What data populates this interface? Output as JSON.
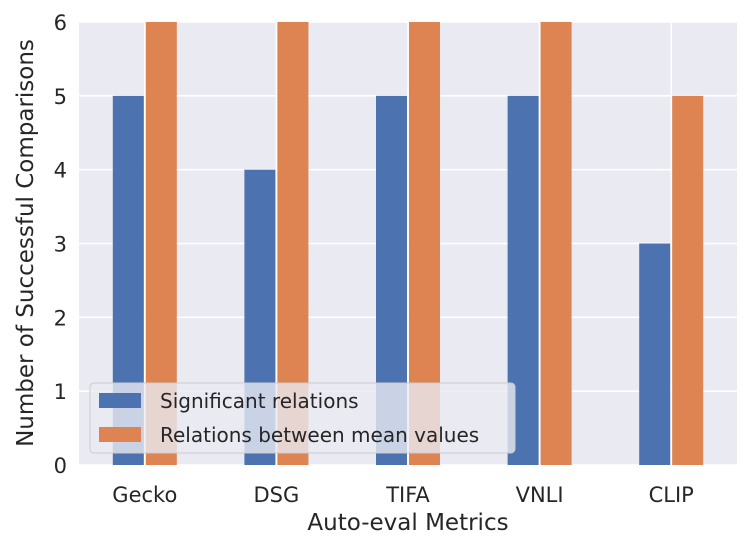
{
  "chart_data": {
    "type": "bar",
    "title": "",
    "xlabel": "Auto-eval Metrics",
    "ylabel": "Number of Successful Comparisons",
    "categories": [
      "Gecko",
      "DSG",
      "TIFA",
      "VNLI",
      "CLIP"
    ],
    "series": [
      {
        "name": "Significant relations",
        "values": [
          5,
          4,
          5,
          5,
          3
        ],
        "color": "#4C72B0"
      },
      {
        "name": "Relations between mean values",
        "values": [
          6,
          6,
          6,
          6,
          5
        ],
        "color": "#DD8452"
      }
    ],
    "ylim": [
      0,
      6
    ],
    "yticks": [
      "0",
      "1",
      "2",
      "3",
      "4",
      "5",
      "6"
    ],
    "grid": true,
    "legend_position": "lower-left",
    "background": "#EAEAF2",
    "grid_color": "#ffffff"
  }
}
